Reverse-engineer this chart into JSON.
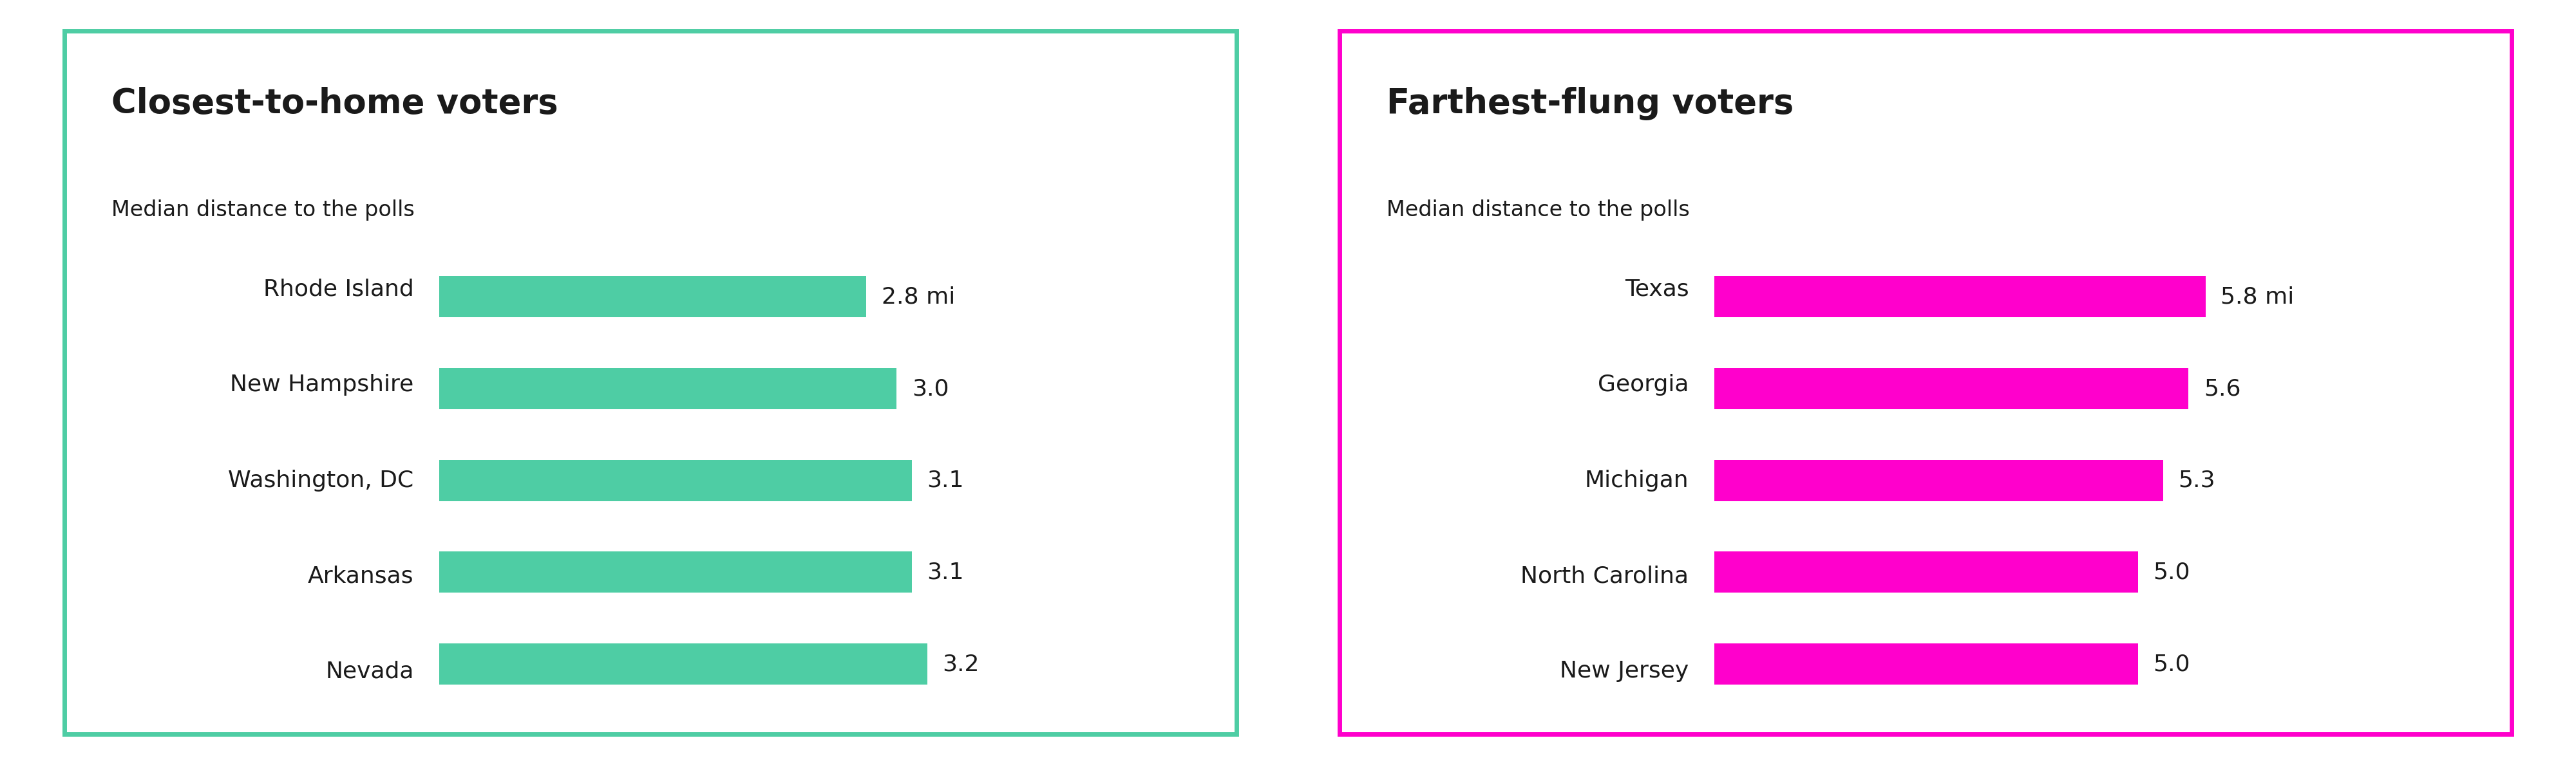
{
  "left_title": "Closest-to-home voters",
  "left_subtitle": "Median distance to the polls",
  "left_categories": [
    "Rhode Island",
    "New Hampshire",
    "Washington, DC",
    "Arkansas",
    "Nevada"
  ],
  "left_values": [
    2.8,
    3.0,
    3.1,
    3.1,
    3.2
  ],
  "left_labels": [
    "2.8 mi",
    "3.0",
    "3.1",
    "3.1",
    "3.2"
  ],
  "left_bar_color": "#4ECDA4",
  "left_border_color": "#4ECDA4",
  "left_xlim": [
    0,
    4.0
  ],
  "right_title": "Farthest-flung voters",
  "right_subtitle": "Median distance to the polls",
  "right_categories": [
    "Texas",
    "Georgia",
    "Michigan",
    "North Carolina",
    "New Jersey"
  ],
  "right_values": [
    5.8,
    5.6,
    5.3,
    5.0,
    5.0
  ],
  "right_labels": [
    "5.8 mi",
    "5.6",
    "5.3",
    "5.0",
    "5.0"
  ],
  "right_bar_color": "#FF00CC",
  "right_border_color": "#FF00CC",
  "right_xlim": [
    0,
    7.2
  ],
  "background_color": "#ffffff",
  "title_fontsize": 38,
  "subtitle_fontsize": 24,
  "label_fontsize": 26,
  "value_fontsize": 26,
  "bar_height": 0.45,
  "text_color": "#1a1a1a",
  "border_linewidth": 5
}
